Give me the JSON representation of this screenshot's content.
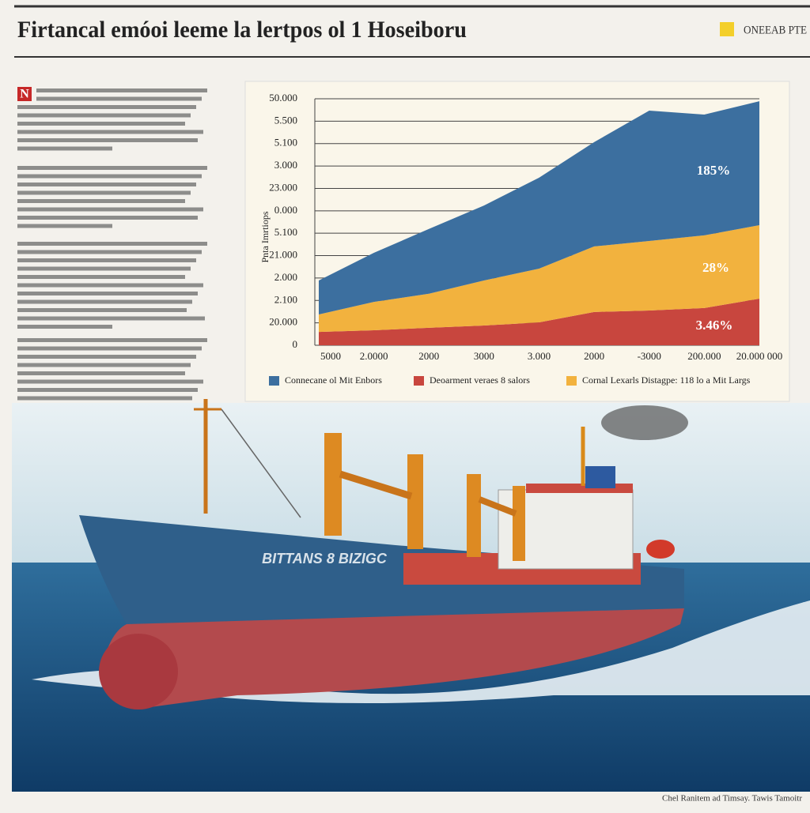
{
  "header": {
    "title": "Firtancal emóoi leeme la lertpos ol 1 Hoseiboru",
    "badge": "ONEEAB PTE"
  },
  "article": {
    "dropcap": "N"
  },
  "chart_data": {
    "type": "area",
    "stacked": true,
    "y_axis_title": "Pnta Imrtiops",
    "y_axis_labels": [
      "50.000",
      "5.500",
      "5.100",
      "3.000",
      "23.000",
      "0.000",
      "5.100",
      "21.000",
      "2.000",
      "2.100",
      "20.000",
      "0"
    ],
    "categories": [
      "5000",
      "2.0000",
      "2000",
      "3000",
      "3.000",
      "2000",
      "-3000",
      "200.000",
      "20.000 000"
    ],
    "ylim": [
      0,
      100
    ],
    "grid": true,
    "series": [
      {
        "name": "Deoarment veraes 8 salors",
        "color": "#c8463e",
        "values": [
          5.4,
          6.1,
          7.1,
          8.0,
          9.3,
          13.5,
          14.1,
          15.1,
          18.9
        ]
      },
      {
        "name": "Cornal Lexarls Distagpe: 118 lo a Mit Largs",
        "color": "#f2b23e",
        "values": [
          7.1,
          11.5,
          13.8,
          18.3,
          21.8,
          26.6,
          28.2,
          29.5,
          29.8
        ]
      },
      {
        "name": "Connecane ol Mit Enbors",
        "color": "#3c6f9f",
        "values": [
          13.8,
          19.9,
          26.3,
          30.4,
          36.9,
          42.3,
          52.9,
          49.0,
          50.3
        ]
      }
    ],
    "annotations": [
      "185%",
      "28%",
      "3.46%"
    ]
  },
  "photo": {
    "hull_text": "BITTANS 8 BIZIGC",
    "caption": "Chel Ranitem ad Timsay. Tawis Tamoitr"
  }
}
